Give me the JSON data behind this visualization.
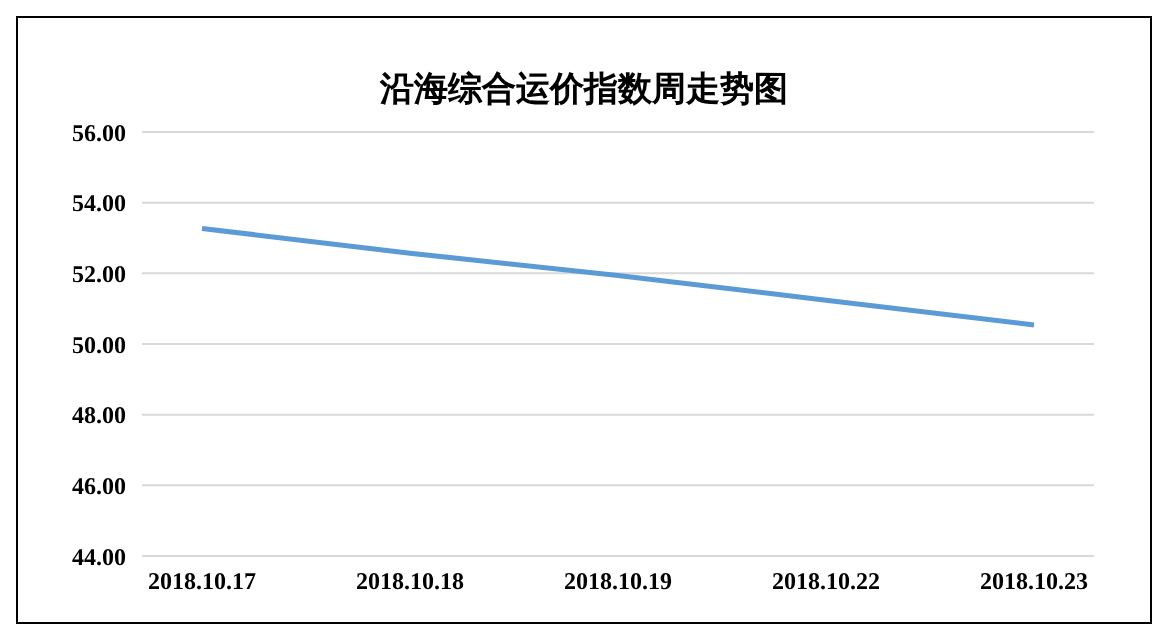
{
  "chart_data": {
    "type": "line",
    "title": "沿海综合运价指数周走势图",
    "categories": [
      "2018.10.17",
      "2018.10.18",
      "2018.10.19",
      "2018.10.22",
      "2018.10.23"
    ],
    "series": [
      {
        "color": "#5b9bd5",
        "values": [
          53.27,
          52.57,
          51.94,
          51.24,
          50.54
        ]
      }
    ],
    "ylim": [
      44,
      56
    ],
    "yticks": [
      {
        "value": 44,
        "label": "44.00"
      },
      {
        "value": 46,
        "label": "46.00"
      },
      {
        "value": 48,
        "label": "48.00"
      },
      {
        "value": 50,
        "label": "50.00"
      },
      {
        "value": 52,
        "label": "52.00"
      },
      {
        "value": 54,
        "label": "54.00"
      },
      {
        "value": 56,
        "label": "56.00"
      }
    ],
    "grid": "y",
    "legend": false,
    "marker": "none",
    "line_style": "solid"
  }
}
